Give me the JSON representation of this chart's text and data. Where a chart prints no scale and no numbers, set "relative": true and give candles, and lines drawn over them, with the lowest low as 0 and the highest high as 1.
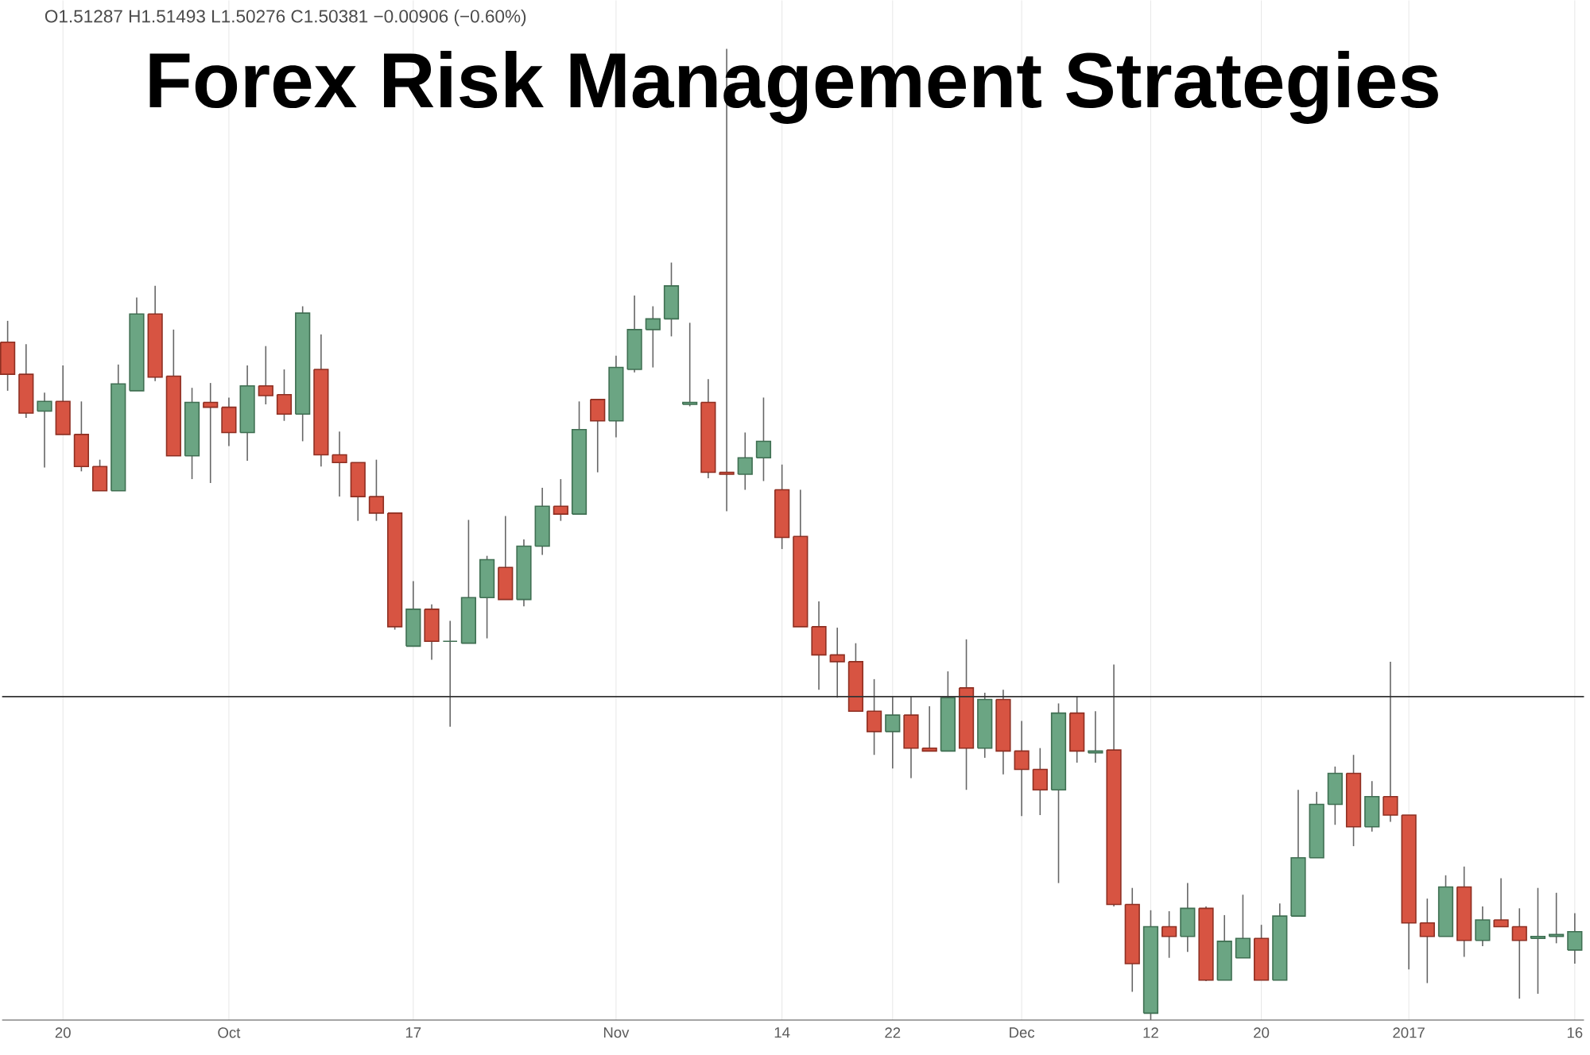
{
  "chart_data": {
    "type": "candlestick",
    "title": "Forex Risk Management Strategies",
    "annotations": [
      "O1.51287  H1.51493  L1.50276  C1.50381  −0.00906 (−0.60%)"
    ],
    "relative": true,
    "grid": "x",
    "categories": [
      null,
      null,
      null,
      "20",
      null,
      null,
      null,
      null,
      null,
      null,
      null,
      null,
      "Oct",
      null,
      null,
      null,
      null,
      null,
      null,
      null,
      null,
      null,
      "17",
      null,
      null,
      null,
      null,
      null,
      null,
      null,
      null,
      null,
      null,
      "Nov",
      null,
      null,
      null,
      null,
      null,
      null,
      null,
      null,
      "14",
      null,
      null,
      null,
      null,
      null,
      "22",
      null,
      null,
      null,
      null,
      null,
      null,
      "Dec",
      null,
      null,
      null,
      null,
      null,
      null,
      "12",
      null,
      null,
      null,
      null,
      null,
      "20",
      null,
      null,
      null,
      null,
      null,
      null,
      null,
      "2017",
      null,
      null,
      null,
      null,
      null,
      null,
      null,
      null,
      "16"
    ],
    "ref_lines": [
      {
        "axis": "y",
        "value": 0.333
      }
    ],
    "ohlc": [
      [
        0.698,
        0.72,
        0.648,
        0.665
      ],
      [
        0.665,
        0.696,
        0.62,
        0.625
      ],
      [
        0.627,
        0.646,
        0.569,
        0.637
      ],
      [
        0.637,
        0.674,
        0.603,
        0.603
      ],
      [
        0.603,
        0.637,
        0.565,
        0.57
      ],
      [
        0.57,
        0.577,
        0.545,
        0.545
      ],
      [
        0.545,
        0.675,
        0.545,
        0.655
      ],
      [
        0.648,
        0.744,
        0.648,
        0.727
      ],
      [
        0.727,
        0.756,
        0.658,
        0.662
      ],
      [
        0.663,
        0.711,
        0.581,
        0.581
      ],
      [
        0.581,
        0.651,
        0.557,
        0.636
      ],
      [
        0.636,
        0.656,
        0.553,
        0.631
      ],
      [
        0.631,
        0.641,
        0.591,
        0.605
      ],
      [
        0.605,
        0.674,
        0.576,
        0.653
      ],
      [
        0.653,
        0.694,
        0.634,
        0.643
      ],
      [
        0.644,
        0.67,
        0.617,
        0.624
      ],
      [
        0.624,
        0.735,
        0.596,
        0.728
      ],
      [
        0.67,
        0.706,
        0.57,
        0.582
      ],
      [
        0.582,
        0.606,
        0.539,
        0.574
      ],
      [
        0.574,
        0.574,
        0.514,
        0.539
      ],
      [
        0.539,
        0.577,
        0.514,
        0.522
      ],
      [
        0.522,
        0.522,
        0.402,
        0.405
      ],
      [
        0.385,
        0.452,
        0.385,
        0.423
      ],
      [
        0.423,
        0.428,
        0.371,
        0.39
      ],
      [
        0.39,
        0.411,
        0.302,
        0.39
      ],
      [
        0.388,
        0.515,
        0.388,
        0.435
      ],
      [
        0.435,
        0.478,
        0.393,
        0.474
      ],
      [
        0.466,
        0.519,
        0.433,
        0.433
      ],
      [
        0.433,
        0.495,
        0.426,
        0.488
      ],
      [
        0.488,
        0.548,
        0.479,
        0.529
      ],
      [
        0.529,
        0.557,
        0.514,
        0.521
      ],
      [
        0.521,
        0.637,
        0.521,
        0.608
      ],
      [
        0.639,
        0.639,
        0.564,
        0.617
      ],
      [
        0.617,
        0.684,
        0.6,
        0.672
      ],
      [
        0.67,
        0.746,
        0.667,
        0.711
      ],
      [
        0.711,
        0.735,
        0.672,
        0.722
      ],
      [
        0.722,
        0.78,
        0.704,
        0.756
      ],
      [
        0.634,
        0.718,
        0.632,
        0.636
      ],
      [
        0.636,
        0.66,
        0.558,
        0.564
      ],
      [
        0.564,
        1,
        0.524,
        0.562
      ],
      [
        0.562,
        0.605,
        0.546,
        0.579
      ],
      [
        0.579,
        0.641,
        0.555,
        0.596
      ],
      [
        0.546,
        0.572,
        0.485,
        0.497
      ],
      [
        0.498,
        0.546,
        0.405,
        0.405
      ],
      [
        0.405,
        0.431,
        0.34,
        0.376
      ],
      [
        0.376,
        0.404,
        0.332,
        0.369
      ],
      [
        0.369,
        0.388,
        0.318,
        0.318
      ],
      [
        0.318,
        0.351,
        0.273,
        0.297
      ],
      [
        0.297,
        0.333,
        0.259,
        0.314
      ],
      [
        0.314,
        0.333,
        0.249,
        0.28
      ],
      [
        0.28,
        0.323,
        0.277,
        0.277
      ],
      [
        0.277,
        0.359,
        0.277,
        0.332
      ],
      [
        0.342,
        0.392,
        0.237,
        0.28
      ],
      [
        0.28,
        0.337,
        0.27,
        0.33
      ],
      [
        0.33,
        0.34,
        0.253,
        0.277
      ],
      [
        0.277,
        0.308,
        0.21,
        0.258
      ],
      [
        0.258,
        0.28,
        0.211,
        0.237
      ],
      [
        0.237,
        0.326,
        0.141,
        0.316
      ],
      [
        0.316,
        0.333,
        0.265,
        0.277
      ],
      [
        0.275,
        0.318,
        0.265,
        0.277
      ],
      [
        0.278,
        0.366,
        0.117,
        0.119
      ],
      [
        0.119,
        0.136,
        0.029,
        0.058
      ],
      [
        0.007,
        0.113,
        0,
        0.096
      ],
      [
        0.096,
        0.112,
        0.064,
        0.086
      ],
      [
        0.086,
        0.141,
        0.07,
        0.115
      ],
      [
        0.115,
        0.117,
        0.04,
        0.041
      ],
      [
        0.041,
        0.108,
        0.041,
        0.081
      ],
      [
        0.064,
        0.129,
        0.064,
        0.084
      ],
      [
        0.084,
        0.098,
        0.041,
        0.041
      ],
      [
        0.041,
        0.12,
        0.041,
        0.107
      ],
      [
        0.107,
        0.237,
        0.107,
        0.167
      ],
      [
        0.167,
        0.235,
        0.167,
        0.222
      ],
      [
        0.222,
        0.261,
        0.201,
        0.254
      ],
      [
        0.254,
        0.273,
        0.179,
        0.199
      ],
      [
        0.199,
        0.246,
        0.194,
        0.23
      ],
      [
        0.23,
        0.369,
        0.204,
        0.211
      ],
      [
        0.211,
        0.211,
        0.052,
        0.1
      ],
      [
        0.1,
        0.125,
        0.038,
        0.086
      ],
      [
        0.086,
        0.149,
        0.086,
        0.137
      ],
      [
        0.137,
        0.158,
        0.065,
        0.082
      ],
      [
        0.082,
        0.117,
        0.076,
        0.103
      ],
      [
        0.103,
        0.146,
        0.096,
        0.096
      ],
      [
        0.096,
        0.115,
        0.022,
        0.082
      ],
      [
        0.084,
        0.136,
        0.027,
        0.086
      ],
      [
        0.086,
        0.131,
        0.079,
        0.088
      ],
      [
        0.072,
        0.11,
        0.058,
        0.091
      ]
    ]
  }
}
